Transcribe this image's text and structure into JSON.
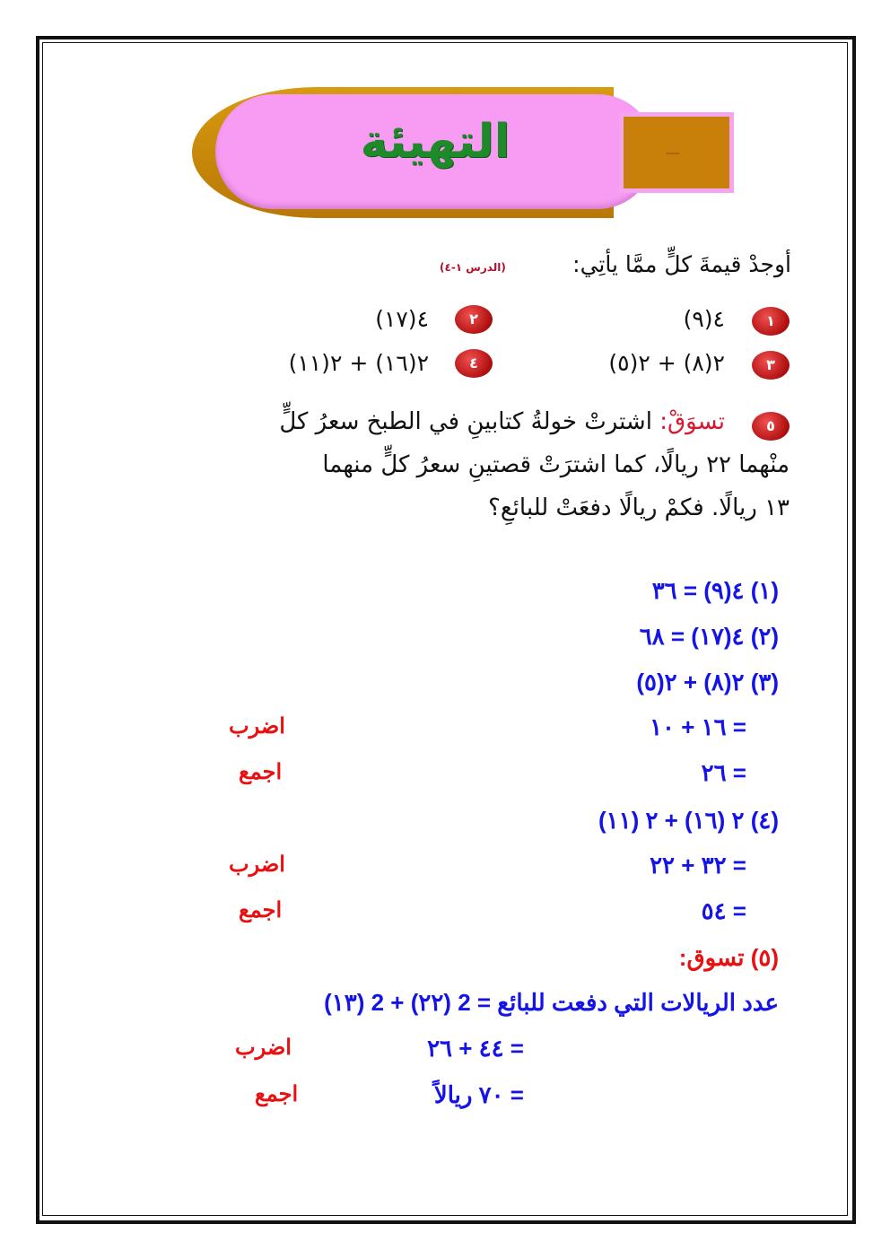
{
  "banner": {
    "title": "التهيئة"
  },
  "exercise": {
    "instruction": "أوجدْ قيمةَ كلٍّ ممَّا يأتِي:",
    "lesson_ref": "(الدرس ١-٤)",
    "problems": [
      {
        "number": "١",
        "expression": "(٩)٤"
      },
      {
        "number": "٢",
        "expression": "(١٧)٤"
      },
      {
        "number": "٣",
        "expression": "(٥)٢ + (٨)٢"
      },
      {
        "number": "٤",
        "expression": "(١١)٢ + (١٦)٢"
      }
    ],
    "word_problem": {
      "number": "٥",
      "label": "تسوَقْ:",
      "lines": [
        "اشترتْ خولةُ كتابينِ في الطبخ سعرُ كلٍّ",
        "منْهما ٢٢ ريالًا، كما اشترَتْ قصتينِ سعرُ كلٍّ منهما",
        "١٣ ريالًا. فكمْ ريالًا دفعَتْ للبائعِ؟"
      ]
    }
  },
  "answers": {
    "a1": "٣٦ = (٩)٤ (١)",
    "a2": "٦٨ = (١٧)٤ (٢)",
    "a3": "(٥)٢ + (٨)٢ (٣)",
    "a3_step1": "١٠ + ١٦ =",
    "a3_step2": "٢٦ =",
    "a4": "(١١) ٢ + (١٦) ٢ (٤)",
    "a4_step1": "٢٢ + ٣٢ =",
    "a4_step2": "٥٤ =",
    "a5_title": "(٥) تسوق:",
    "a5_eq": "عدد الريالات التي دفعت للبائع = 2 (٢٢) + 2 (١٣)",
    "a5_step1": "٢٦ + ٤٤ =",
    "a5_step2": "= ٧٠ ريالاً",
    "note_multiply": "اضرب",
    "note_add": "اجمع"
  },
  "colors": {
    "answer": "#1414e6",
    "note": "#e81010",
    "title": "#1f8a2a",
    "banner_pink": "#f79cf2",
    "banner_orange": "#c9800a"
  }
}
